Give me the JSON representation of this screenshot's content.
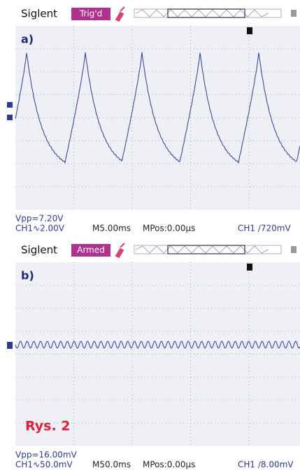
{
  "panels": [
    {
      "brand": "Siglent",
      "status": "Trig'd",
      "label": "a)",
      "vpp": "Vpp=7.20V",
      "ch_scale": "CH1∿2.00V",
      "timebase": "M5.00ms",
      "mpos": "MPos:0.00µs",
      "trigger": "CH1 ∕720mV"
    },
    {
      "brand": "Siglent",
      "status": "Armed",
      "label": "b)",
      "vpp": "Vpp=16.00mV",
      "ch_scale": "CH1∿50.0mV",
      "timebase": "M50.0ms",
      "mpos": "MPos:0.00µs",
      "trigger": "CH1 ∕8.00mV"
    }
  ],
  "caption": "Rys. 2"
}
